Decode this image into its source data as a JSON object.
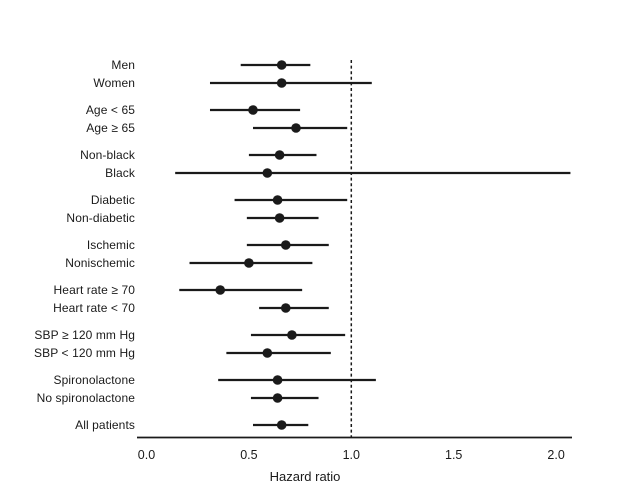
{
  "figure": {
    "background_color": "#ffffff",
    "ink_color": "#1a1a1a"
  },
  "chart_data": {
    "type": "scatter",
    "subtype": "forest-plot",
    "xlabel": "Hazard ratio",
    "xlim": [
      0.0,
      2.0
    ],
    "x_ticks": [
      0.0,
      0.5,
      1.0,
      1.5,
      2.0
    ],
    "x_tick_labels": [
      "0.0",
      "0.5",
      "1.0",
      "1.5",
      "2.0"
    ],
    "reference_line_x": 1.0,
    "reference_line_style": "dashed",
    "grid": false,
    "legend": false,
    "marker": "filled-circle",
    "marker_color": "#1a1a1a",
    "groups": [
      {
        "rows": [
          {
            "label": "Men",
            "hr": 0.66,
            "ci_low": 0.46,
            "ci_high": 0.8
          },
          {
            "label": "Women",
            "hr": 0.66,
            "ci_low": 0.31,
            "ci_high": 1.1
          }
        ]
      },
      {
        "rows": [
          {
            "label": "Age < 65",
            "hr": 0.52,
            "ci_low": 0.31,
            "ci_high": 0.75
          },
          {
            "label": "Age ≥ 65",
            "hr": 0.73,
            "ci_low": 0.52,
            "ci_high": 0.98
          }
        ]
      },
      {
        "rows": [
          {
            "label": "Non-black",
            "hr": 0.65,
            "ci_low": 0.5,
            "ci_high": 0.83
          },
          {
            "label": "Black",
            "hr": 0.59,
            "ci_low": 0.14,
            "ci_high": 2.07
          }
        ]
      },
      {
        "rows": [
          {
            "label": "Diabetic",
            "hr": 0.64,
            "ci_low": 0.43,
            "ci_high": 0.98
          },
          {
            "label": "Non-diabetic",
            "hr": 0.65,
            "ci_low": 0.49,
            "ci_high": 0.84
          }
        ]
      },
      {
        "rows": [
          {
            "label": "Ischemic",
            "hr": 0.68,
            "ci_low": 0.49,
            "ci_high": 0.89
          },
          {
            "label": "Nonischemic",
            "hr": 0.5,
            "ci_low": 0.21,
            "ci_high": 0.81
          }
        ]
      },
      {
        "rows": [
          {
            "label": "Heart rate ≥ 70",
            "hr": 0.36,
            "ci_low": 0.16,
            "ci_high": 0.76
          },
          {
            "label": "Heart rate < 70",
            "hr": 0.68,
            "ci_low": 0.55,
            "ci_high": 0.89
          }
        ]
      },
      {
        "rows": [
          {
            "label": "SBP ≥ 120 mm Hg",
            "hr": 0.71,
            "ci_low": 0.51,
            "ci_high": 0.97
          },
          {
            "label": "SBP < 120 mm Hg",
            "hr": 0.59,
            "ci_low": 0.39,
            "ci_high": 0.9
          }
        ]
      },
      {
        "rows": [
          {
            "label": "Spironolactone",
            "hr": 0.64,
            "ci_low": 0.35,
            "ci_high": 1.12
          },
          {
            "label": "No spironolactone",
            "hr": 0.64,
            "ci_low": 0.51,
            "ci_high": 0.84
          }
        ]
      },
      {
        "rows": [
          {
            "label": "All patients",
            "hr": 0.66,
            "ci_low": 0.52,
            "ci_high": 0.79
          }
        ]
      }
    ]
  }
}
